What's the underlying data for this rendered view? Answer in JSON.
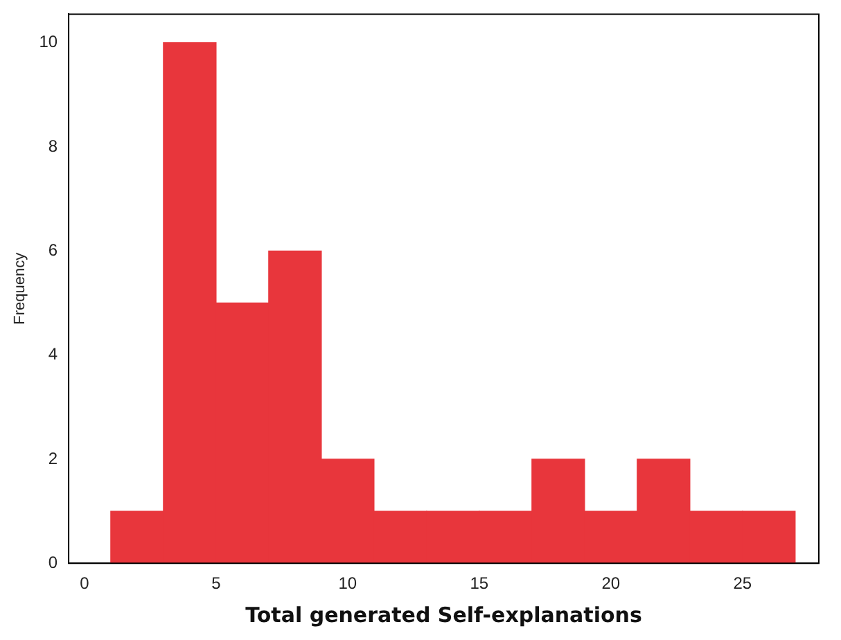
{
  "chart_data": {
    "type": "histogram",
    "xlabel": "Total generated Self-explanations",
    "ylabel": "Frequency",
    "bins": [
      1,
      3,
      5,
      7,
      9,
      11,
      13,
      15,
      17,
      19,
      21,
      23,
      25,
      27
    ],
    "values": [
      1,
      10,
      5,
      6,
      2,
      1,
      1,
      1,
      2,
      1,
      2,
      1,
      1
    ],
    "color": "#e8363c",
    "xlim": [
      -0.6,
      27.9
    ],
    "xticks": [
      0,
      5,
      10,
      15,
      20,
      25
    ],
    "ylim": [
      0,
      10.55
    ],
    "yticks": [
      0,
      2,
      4,
      6,
      8,
      10
    ],
    "grid": false,
    "legend": false
  }
}
